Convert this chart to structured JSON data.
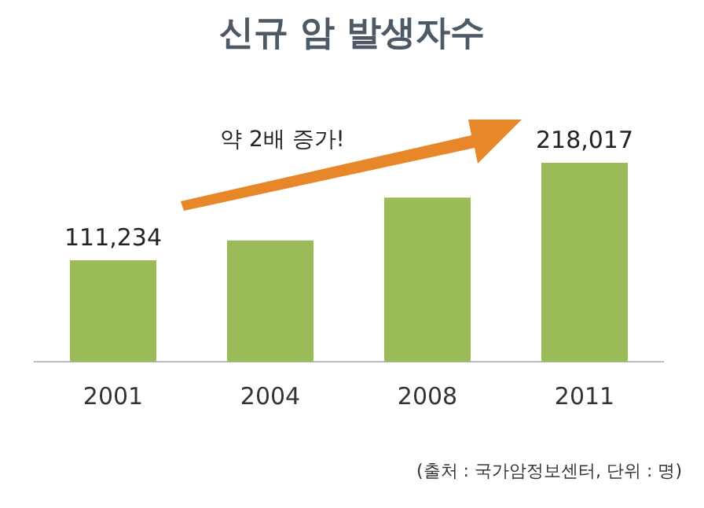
{
  "chart_data": {
    "type": "bar",
    "title": "신규 암 발생자수",
    "categories": [
      "2001",
      "2004",
      "2008",
      "2011"
    ],
    "values": [
      111234,
      133000,
      180000,
      218017
    ],
    "value_labels": [
      "111,234",
      null,
      null,
      "218,017"
    ],
    "color": "#9bbb59",
    "annotations": [
      "약 2배 증가!",
      "(출처 : 국가암정보센터, 단위 : 명)"
    ],
    "data_labels": false
  }
}
